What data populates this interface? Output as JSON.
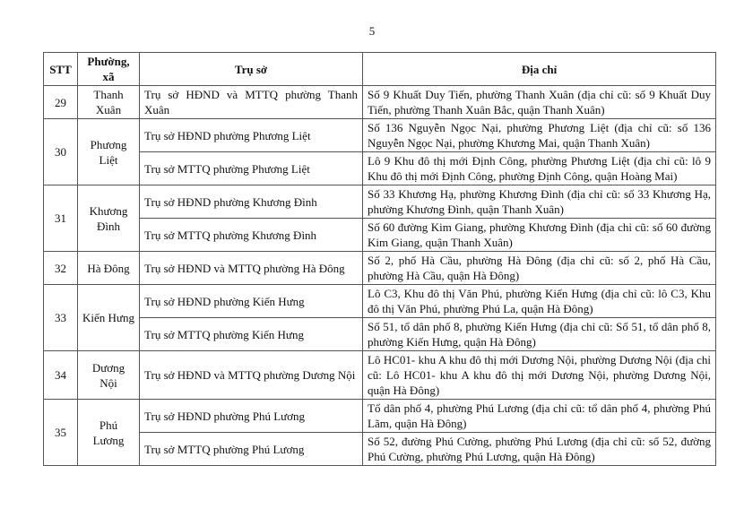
{
  "page_number": "5",
  "headers": [
    "STT",
    "Phường, xã",
    "Trụ sở",
    "Địa chỉ"
  ],
  "groups": [
    {
      "stt": "29",
      "ward": "Thanh Xuân",
      "rows": [
        {
          "office": "Trụ sở HĐND và MTTQ phường Thanh Xuân",
          "address": "Số 9 Khuất Duy Tiến, phường Thanh Xuân (địa chỉ cũ: số 9 Khuất Duy Tiến, phường Thanh Xuân Bắc, quận Thanh Xuân)"
        }
      ]
    },
    {
      "stt": "30",
      "ward": "Phương Liệt",
      "rows": [
        {
          "office": "Trụ sở HĐND phường Phương Liệt",
          "address": "Số 136 Nguyễn Ngọc Nại, phường Phương Liệt (địa chỉ cũ: số 136 Nguyễn Ngọc Nại, phường Khương Mai, quận Thanh Xuân)"
        },
        {
          "office": "Trụ sở MTTQ phường Phương Liệt",
          "address": "Lô 9 Khu đô thị mới Định Công, phường Phương Liệt (địa chỉ cũ: lô 9 Khu đô thị mới Định Công, phường Định Công, quận Hoàng Mai)"
        }
      ]
    },
    {
      "stt": "31",
      "ward": "Khương Đình",
      "rows": [
        {
          "office": "Trụ sở HĐND phường Khương Đình",
          "address": "Số 33 Khương Hạ, phường Khương Đình (địa chỉ cũ: số 33 Khương Hạ, phường Khương Đình, quận Thanh Xuân)"
        },
        {
          "office": "Trụ sở MTTQ phường Khương Đình",
          "address": "Số 60 đường Kim Giang, phường Khương Đình (địa chỉ cũ: số 60 đường Kim Giang, quận Thanh Xuân)"
        }
      ]
    },
    {
      "stt": "32",
      "ward": "Hà Đông",
      "rows": [
        {
          "office": "Trụ sở HĐND và MTTQ phường Hà Đông",
          "address": "Số 2, phố Hà Cầu, phường Hà Đông (địa chỉ cũ: số 2, phố Hà Cầu, phường Hà Cầu, quận Hà Đông)"
        }
      ]
    },
    {
      "stt": "33",
      "ward": "Kiến Hưng",
      "rows": [
        {
          "office": "Trụ sở HĐND phường Kiến Hưng",
          "address": "Lô C3, Khu đô thị Văn Phú, phường Kiến Hưng (địa chỉ cũ: lô C3, Khu đô thị Văn Phú, phường Phú La, quận Hà Đông)"
        },
        {
          "office": "Trụ sở MTTQ phường Kiến Hưng",
          "address": "Số 51, tổ dân phố 8, phường Kiến Hưng (địa chỉ cũ: Số 51, tổ dân phố 8, phường Kiến Hưng, quận Hà Đông)"
        }
      ]
    },
    {
      "stt": "34",
      "ward": "Dương Nội",
      "rows": [
        {
          "office": "Trụ sở HĐND và MTTQ phường Dương Nội",
          "address": "Lô HC01- khu A khu đô thị mới Dương Nội, phường Dương Nội (địa chỉ cũ: Lô HC01- khu A khu đô thị mới Dương Nội, phường Dương Nội, quận Hà Đông)"
        }
      ]
    },
    {
      "stt": "35",
      "ward": "Phú Lương",
      "rows": [
        {
          "office": "Trụ sở HĐND phường Phú Lương",
          "address": "Tổ dân phố 4, phường Phú Lương (địa chỉ cũ: tổ dân phố 4, phường Phú Lãm, quận Hà Đông)"
        },
        {
          "office": "Trụ sở MTTQ phường Phú Lương",
          "address": "Số 52, đường Phú Cường, phường Phú Lương (địa chỉ cũ: số 52, đường Phú Cường, phường Phú Lương, quận Hà Đông)"
        }
      ]
    }
  ]
}
